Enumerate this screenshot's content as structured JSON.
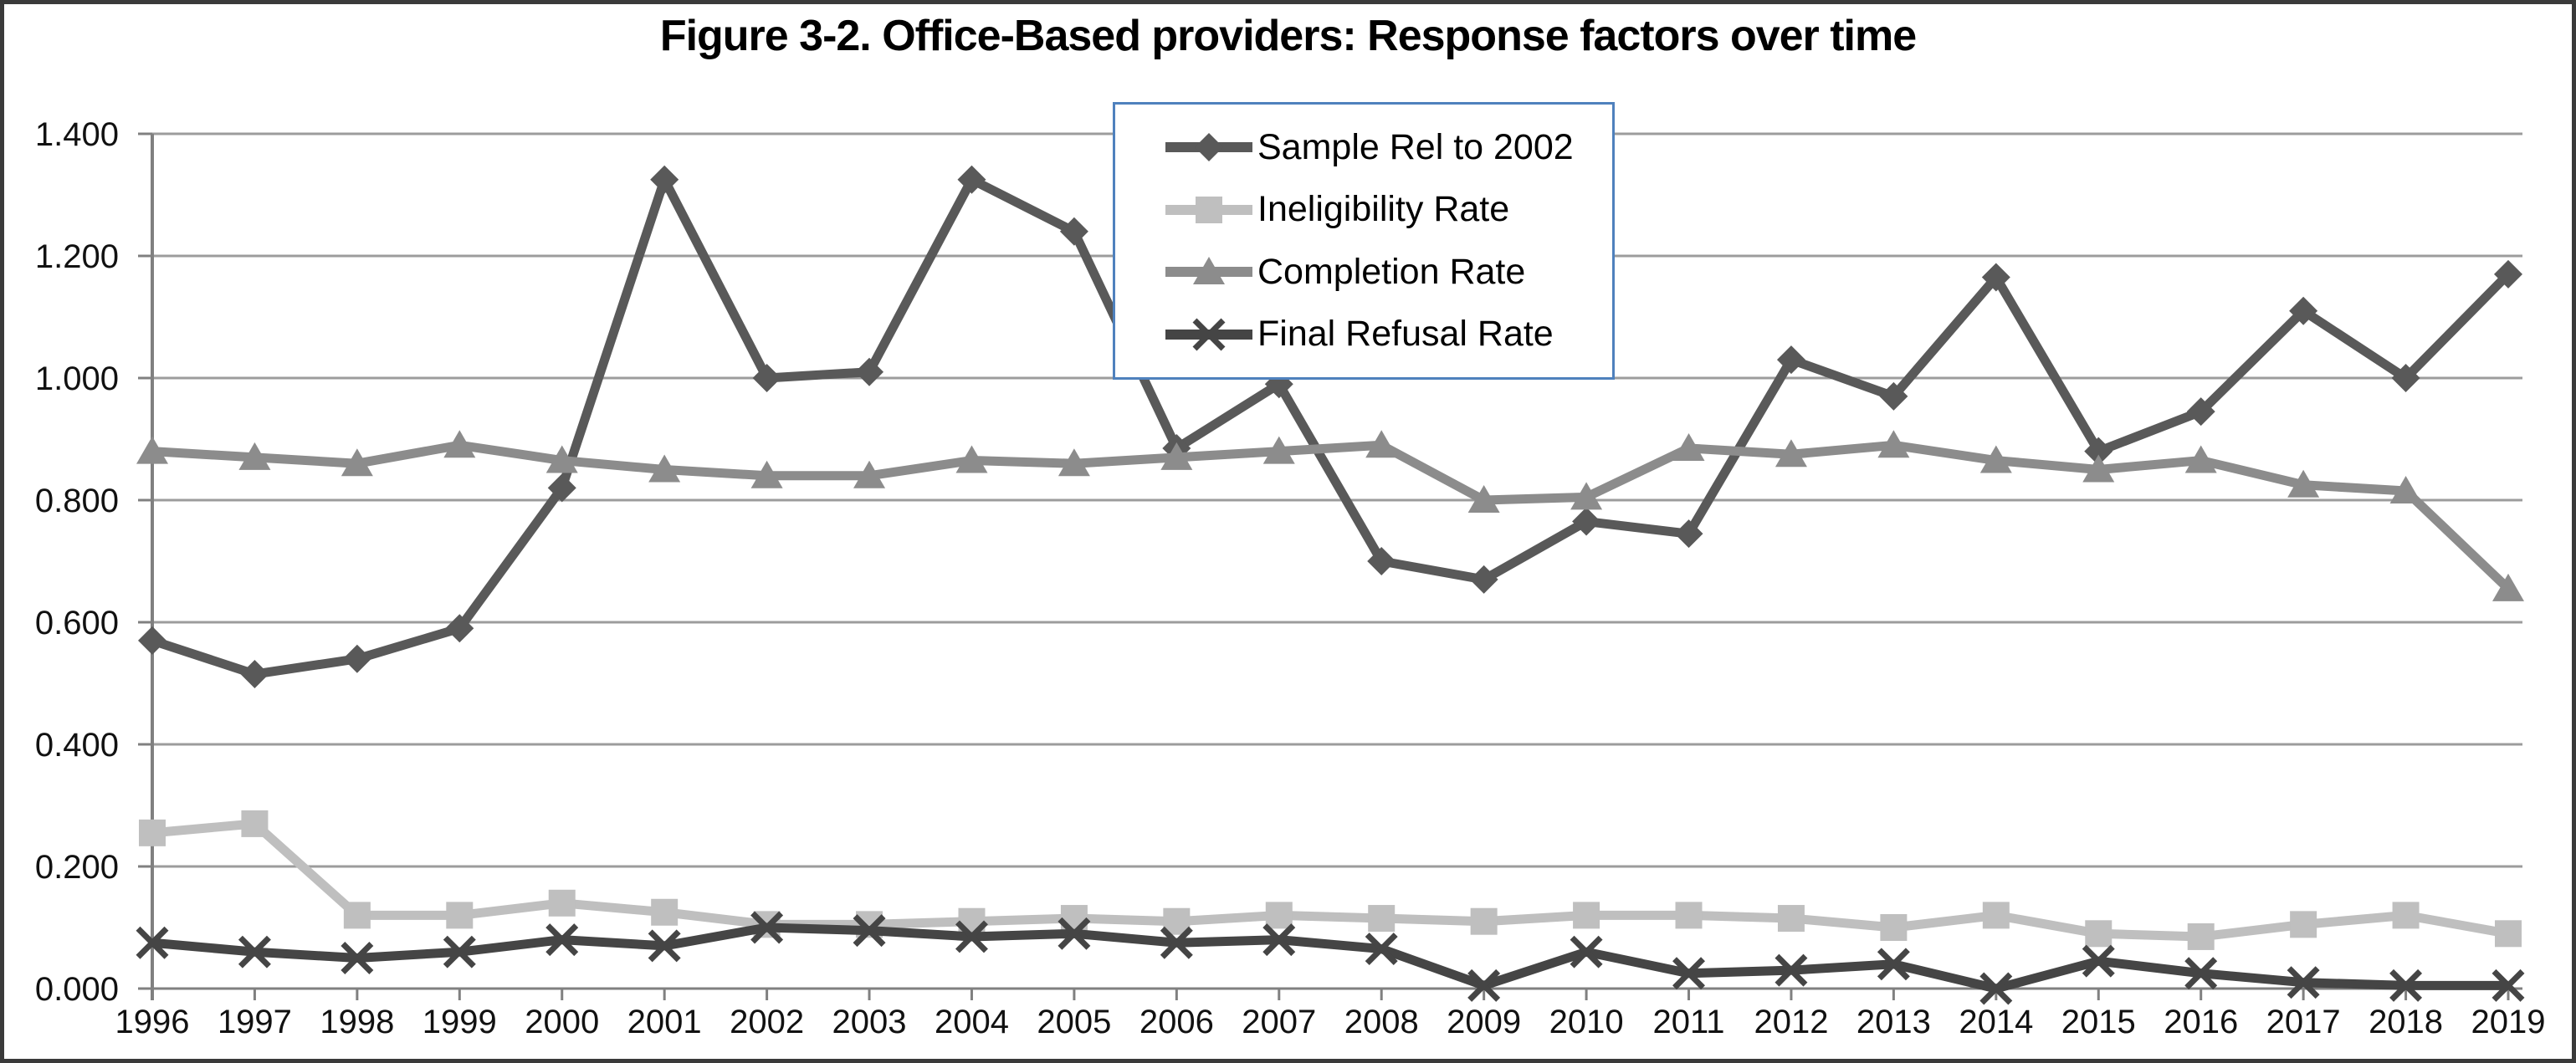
{
  "figure": {
    "title": "Figure 3-2. Office-Based providers: Response factors over time"
  },
  "chart_data": {
    "type": "line",
    "title": "Figure 3-2. Office-Based providers: Response factors over time",
    "xlabel": "",
    "ylabel": "",
    "x": [
      1996,
      1997,
      1998,
      1999,
      2000,
      2001,
      2002,
      2003,
      2004,
      2005,
      2006,
      2007,
      2008,
      2009,
      2010,
      2011,
      2012,
      2013,
      2014,
      2015,
      2016,
      2017,
      2018,
      2019
    ],
    "y_ticks": [
      "0.000",
      "0.200",
      "0.400",
      "0.600",
      "0.800",
      "1.000",
      "1.200",
      "1.400"
    ],
    "ylim": [
      0,
      1.4
    ],
    "grid": "horizontal",
    "legend_position": "inside-top-center",
    "series": [
      {
        "name": "Sample Rel to 2002",
        "marker": "diamond",
        "color": "#595959",
        "values": [
          0.57,
          0.515,
          0.54,
          0.59,
          0.82,
          1.325,
          1.0,
          1.01,
          1.325,
          1.24,
          0.885,
          0.99,
          0.7,
          0.67,
          0.765,
          0.745,
          1.03,
          0.97,
          1.165,
          0.88,
          0.945,
          1.11,
          1.0,
          1.17
        ]
      },
      {
        "name": "Ineligibility Rate",
        "marker": "square",
        "color": "#bfbfbf",
        "values": [
          0.255,
          0.27,
          0.12,
          0.12,
          0.14,
          0.125,
          0.105,
          0.105,
          0.11,
          0.115,
          0.11,
          0.12,
          0.115,
          0.11,
          0.12,
          0.12,
          0.115,
          0.1,
          0.12,
          0.09,
          0.085,
          0.105,
          0.12,
          0.09
        ]
      },
      {
        "name": "Completion Rate",
        "marker": "triangle",
        "color": "#8c8c8c",
        "values": [
          0.88,
          0.87,
          0.86,
          0.89,
          0.865,
          0.85,
          0.84,
          0.84,
          0.865,
          0.86,
          0.87,
          0.88,
          0.89,
          0.8,
          0.805,
          0.885,
          0.875,
          0.89,
          0.865,
          0.85,
          0.865,
          0.825,
          0.815,
          0.655
        ]
      },
      {
        "name": "Final Refusal Rate",
        "marker": "x",
        "color": "#454545",
        "values": [
          0.075,
          0.06,
          0.05,
          0.06,
          0.08,
          0.07,
          0.1,
          0.095,
          0.085,
          0.09,
          0.075,
          0.08,
          0.065,
          0.005,
          0.06,
          0.025,
          0.03,
          0.04,
          0.0,
          0.045,
          0.025,
          0.01,
          0.005,
          0.005
        ]
      }
    ],
    "colors": {
      "gridline": "#9c9c9c",
      "axis": "#808080",
      "tick_label": "#111111",
      "figure_border": "#3a3a3a",
      "legend_border": "#4f81bd"
    }
  }
}
